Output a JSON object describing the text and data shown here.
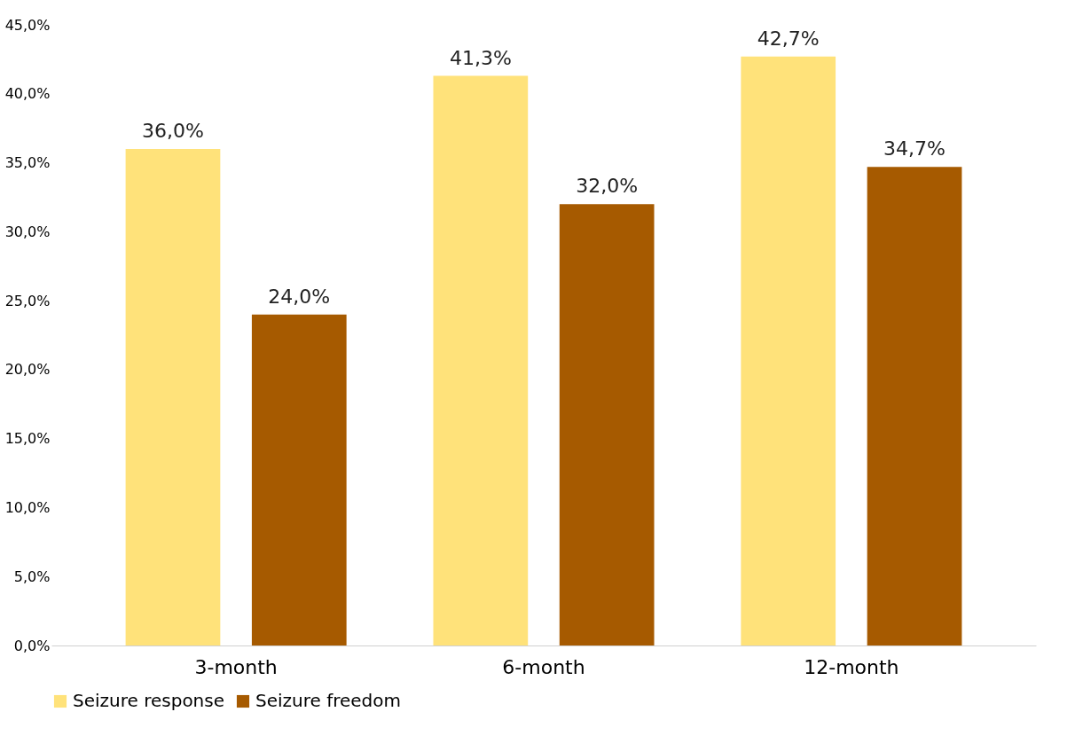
{
  "chart_data": {
    "type": "bar",
    "categories": [
      "3-month",
      "6-month",
      "12-month"
    ],
    "series": [
      {
        "name": "Seizure response",
        "color": "#ffe27a",
        "values": [
          36.0,
          41.3,
          42.7
        ],
        "value_labels": [
          "36,0%",
          "41,3%",
          "42,7%"
        ]
      },
      {
        "name": "Seizure freedom",
        "color": "#a65a00",
        "values": [
          24.0,
          32.0,
          34.7
        ],
        "value_labels": [
          "24,0%",
          "32,0%",
          "34,7%"
        ]
      }
    ],
    "ylim": [
      0,
      45
    ],
    "yticks": [
      {
        "value": 0,
        "label": "0,0%"
      },
      {
        "value": 5,
        "label": "5,0%"
      },
      {
        "value": 10,
        "label": "10,0%"
      },
      {
        "value": 15,
        "label": "15,0%"
      },
      {
        "value": 20,
        "label": "20,0%"
      },
      {
        "value": 25,
        "label": "25,0%"
      },
      {
        "value": 30,
        "label": "30,0%"
      },
      {
        "value": 35,
        "label": "35,0%"
      },
      {
        "value": 40,
        "label": "40,0%"
      },
      {
        "value": 45,
        "label": "45,0%"
      }
    ],
    "grid": false,
    "legend": "bottom"
  }
}
